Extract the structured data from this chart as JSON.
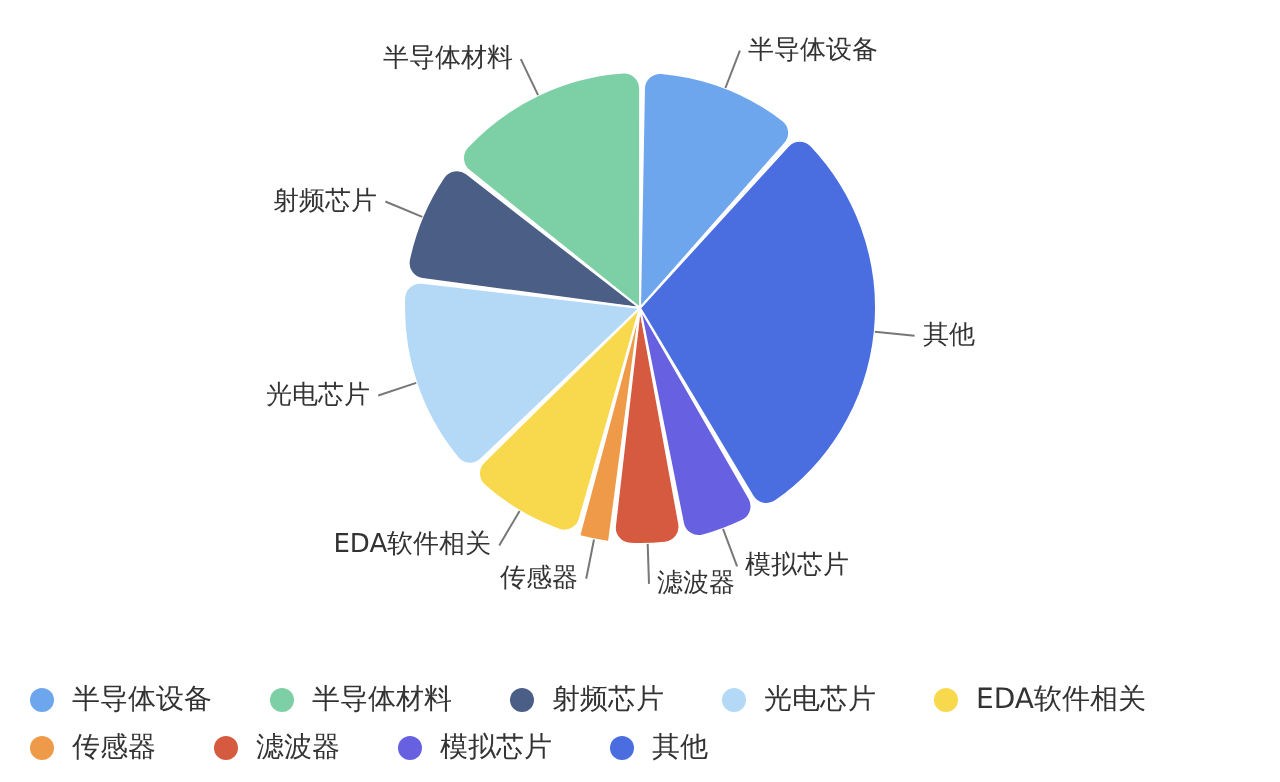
{
  "chart_data": {
    "type": "pie",
    "categories": [
      "半导体设备",
      "半导体材料",
      "射频芯片",
      "光电芯片",
      "EDA软件相关",
      "传感器",
      "滤波器",
      "模拟芯片",
      "其他"
    ],
    "values": [
      11.5,
      14.6,
      8.6,
      14.3,
      8.4,
      2.1,
      4.8,
      5.3,
      30.4
    ],
    "colors": [
      "#6ea6ee",
      "#7dd0a6",
      "#4b5e86",
      "#b3d9f7",
      "#f8d94e",
      "#ee9a48",
      "#d65a40",
      "#6760e0",
      "#4a6ee0"
    ],
    "legend": "bottom"
  }
}
